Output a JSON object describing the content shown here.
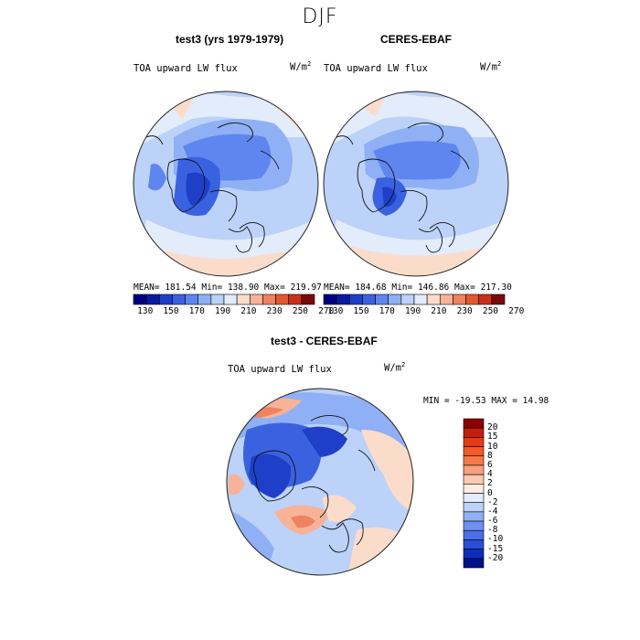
{
  "season": "DJF",
  "units_label": "W/m",
  "units_exp": "2",
  "panels": [
    {
      "title": "test3 (yrs 1979-1979)",
      "variable": "TOA upward LW flux",
      "stats": "MEAN= 181.54   Min= 138.90   Max= 219.97"
    },
    {
      "title": "CERES-EBAF",
      "variable": "TOA upward LW flux",
      "stats": "MEAN= 184.68   Min= 146.86   Max= 217.30"
    }
  ],
  "diff_panel": {
    "title": "test3 - CERES-EBAF",
    "variable": "TOA upward LW flux",
    "stats": "MIN = -19.53 MAX =  14.98"
  },
  "colorbar_top": {
    "colors": [
      "#00007f",
      "#0a1aa0",
      "#1f3fc8",
      "#3a62e0",
      "#5f86ef",
      "#8fb0f5",
      "#bcd2f8",
      "#e2ecfb",
      "#fbdccb",
      "#f6b398",
      "#ef8360",
      "#e2582f",
      "#c8321a",
      "#7a0a0a"
    ],
    "tick_labels": [
      "130",
      "150",
      "170",
      "190",
      "210",
      "230",
      "250",
      "270"
    ]
  },
  "colorbar_diff": {
    "colors": [
      "#8b0000",
      "#c41e0e",
      "#e23b16",
      "#f35a28",
      "#f7794a",
      "#f9a07e",
      "#fbc8b0",
      "#fdece2",
      "#e2ecfb",
      "#bcd2f8",
      "#8fb0f5",
      "#6d92ef",
      "#4a70e6",
      "#2a4ed8",
      "#0e2db8",
      "#00108a"
    ],
    "tick_labels": [
      "20",
      "15",
      "10",
      "8",
      "6",
      "4",
      "2",
      "0",
      "-2",
      "-4",
      "-6",
      "-8",
      "-10",
      "-15",
      "-20"
    ]
  },
  "chart_data": [
    {
      "type": "heatmap",
      "title": "test3 (yrs 1979-1979)",
      "projection": "north polar stereographic",
      "variable": "TOA upward LW flux",
      "units": "W/m^2",
      "mean": 181.54,
      "min": 138.9,
      "max": 219.97,
      "color_levels": [
        130,
        140,
        150,
        160,
        170,
        180,
        190,
        200,
        210,
        220,
        230,
        240,
        250,
        260,
        270
      ]
    },
    {
      "type": "heatmap",
      "title": "CERES-EBAF",
      "projection": "north polar stereographic",
      "variable": "TOA upward LW flux",
      "units": "W/m^2",
      "mean": 184.68,
      "min": 146.86,
      "max": 217.3,
      "color_levels": [
        130,
        140,
        150,
        160,
        170,
        180,
        190,
        200,
        210,
        220,
        230,
        240,
        250,
        260,
        270
      ]
    },
    {
      "type": "heatmap",
      "title": "test3 - CERES-EBAF",
      "projection": "north polar stereographic",
      "variable": "TOA upward LW flux",
      "units": "W/m^2",
      "min": -19.53,
      "max": 14.98,
      "color_levels": [
        -20,
        -15,
        -10,
        -8,
        -6,
        -4,
        -2,
        0,
        2,
        4,
        6,
        8,
        10,
        15,
        20
      ]
    }
  ]
}
